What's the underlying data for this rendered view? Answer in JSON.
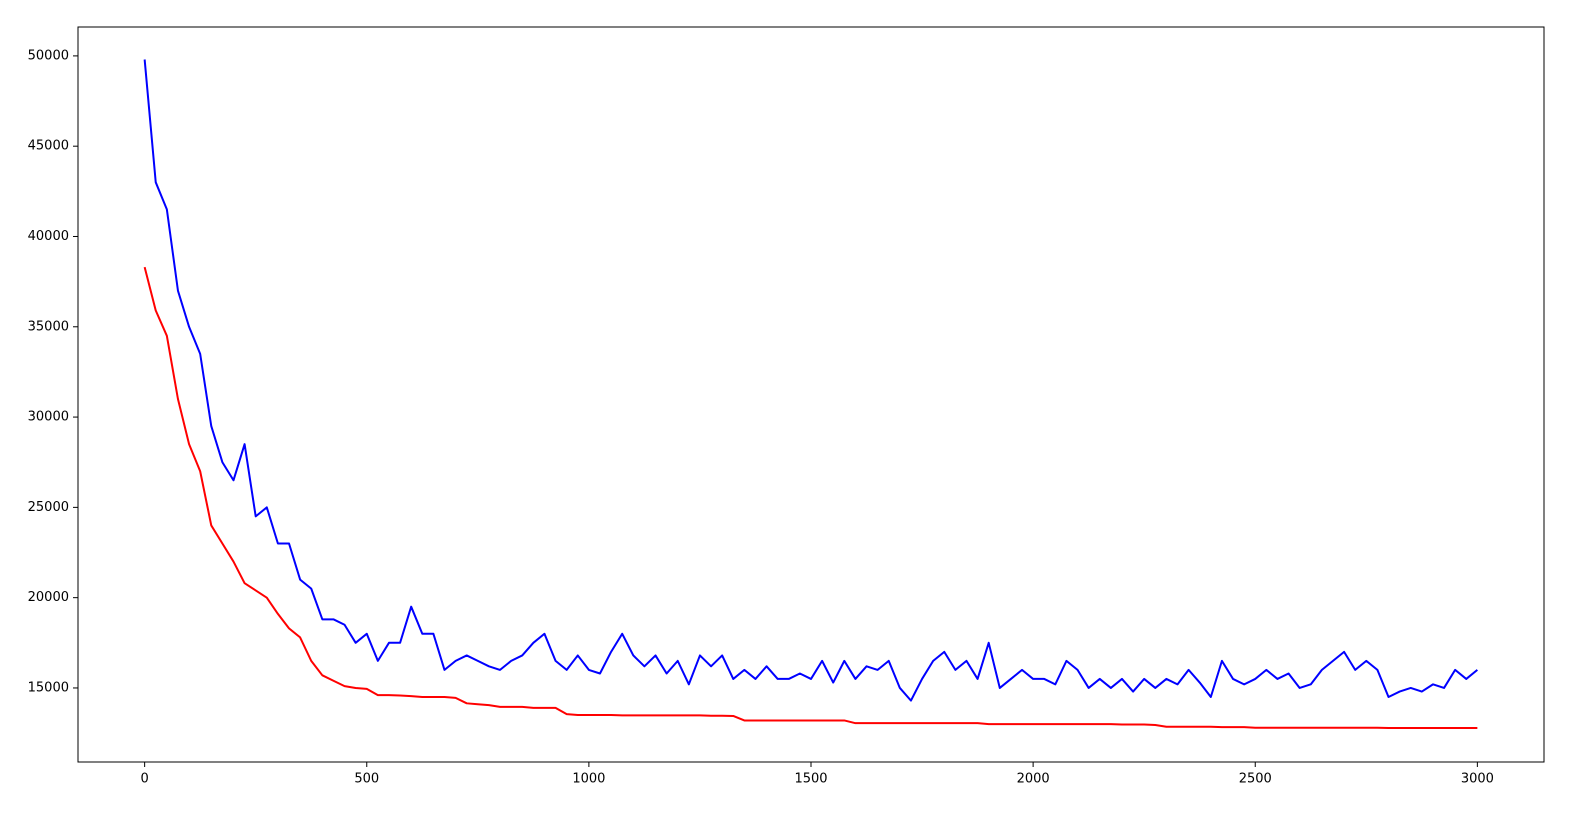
{
  "chart_data": {
    "type": "line",
    "x": [
      0,
      25,
      50,
      75,
      100,
      125,
      150,
      175,
      200,
      225,
      250,
      275,
      300,
      325,
      350,
      375,
      400,
      425,
      450,
      475,
      500,
      525,
      550,
      575,
      600,
      625,
      650,
      675,
      700,
      725,
      750,
      775,
      800,
      825,
      850,
      875,
      900,
      925,
      950,
      975,
      1000,
      1025,
      1050,
      1075,
      1100,
      1125,
      1150,
      1175,
      1200,
      1225,
      1250,
      1275,
      1300,
      1325,
      1350,
      1375,
      1400,
      1425,
      1450,
      1475,
      1500,
      1525,
      1550,
      1575,
      1600,
      1625,
      1650,
      1675,
      1700,
      1725,
      1750,
      1775,
      1800,
      1825,
      1850,
      1875,
      1900,
      1925,
      1950,
      1975,
      2000,
      2025,
      2050,
      2075,
      2100,
      2125,
      2150,
      2175,
      2200,
      2225,
      2250,
      2275,
      2300,
      2325,
      2350,
      2375,
      2400,
      2425,
      2450,
      2475,
      2500,
      2525,
      2550,
      2575,
      2600,
      2625,
      2650,
      2675,
      2700,
      2725,
      2750,
      2775,
      2800,
      2825,
      2850,
      2875,
      2900,
      2925,
      2950,
      2975,
      3000
    ],
    "series": [
      {
        "color": "#0000ff",
        "values": [
          49800,
          43000,
          41500,
          37000,
          35000,
          33500,
          29500,
          27500,
          26500,
          28500,
          24500,
          25000,
          23000,
          23000,
          21000,
          20500,
          18800,
          18800,
          18500,
          17500,
          18000,
          16500,
          17500,
          17500,
          19500,
          18000,
          18000,
          16000,
          16500,
          16800,
          16500,
          16200,
          16000,
          16500,
          16800,
          17500,
          18000,
          16500,
          16000,
          16800,
          16000,
          15800,
          17000,
          18000,
          16800,
          16200,
          16800,
          15800,
          16500,
          15200,
          16800,
          16200,
          16800,
          15500,
          16000,
          15500,
          16200,
          15500,
          15500,
          15800,
          15500,
          16500,
          15300,
          16500,
          15500,
          16200,
          16000,
          16500,
          15000,
          14300,
          15500,
          16500,
          17000,
          16000,
          16500,
          15500,
          17500,
          15000,
          15500,
          16000,
          15500,
          15500,
          15200,
          16500,
          16000,
          15000,
          15500,
          15000,
          15500,
          14800,
          15500,
          15000,
          15500,
          15200,
          16000,
          15300,
          14500,
          16500,
          15500,
          15200,
          15500,
          16000,
          15500,
          15800,
          15000,
          15200,
          16000,
          16500,
          17000,
          16000,
          16500,
          16000,
          14500,
          14800,
          15000,
          14800,
          15200,
          15000,
          16000,
          15500,
          16000
        ]
      },
      {
        "color": "#ff0000",
        "values": [
          38300,
          35900,
          34500,
          31000,
          28500,
          27000,
          24000,
          23000,
          22000,
          20800,
          20400,
          20000,
          19100,
          18300,
          17800,
          16500,
          15700,
          15400,
          15100,
          15000,
          14950,
          14600,
          14600,
          14580,
          14550,
          14500,
          14500,
          14500,
          14450,
          14150,
          14100,
          14050,
          13950,
          13950,
          13950,
          13900,
          13900,
          13900,
          13550,
          13500,
          13500,
          13500,
          13500,
          13480,
          13480,
          13480,
          13480,
          13480,
          13480,
          13480,
          13480,
          13460,
          13460,
          13450,
          13200,
          13200,
          13200,
          13200,
          13200,
          13200,
          13200,
          13200,
          13200,
          13200,
          13050,
          13050,
          13050,
          13050,
          13050,
          13050,
          13050,
          13050,
          13050,
          13050,
          13050,
          13050,
          13000,
          13000,
          13000,
          13000,
          13000,
          13000,
          13000,
          13000,
          13000,
          13000,
          13000,
          13000,
          12980,
          12980,
          12980,
          12950,
          12850,
          12850,
          12850,
          12850,
          12850,
          12830,
          12830,
          12830,
          12800,
          12800,
          12800,
          12800,
          12800,
          12800,
          12800,
          12800,
          12800,
          12800,
          12800,
          12800,
          12780,
          12780,
          12780,
          12780,
          12780,
          12780,
          12780,
          12780,
          12780
        ]
      }
    ],
    "xlim": [
      -150,
      3150
    ],
    "ylim": [
      10900,
      51600
    ],
    "xticks": [
      0,
      500,
      1000,
      1500,
      2000,
      2500,
      3000
    ],
    "yticks": [
      15000,
      20000,
      25000,
      30000,
      35000,
      40000,
      45000,
      50000
    ],
    "grid": false
  }
}
